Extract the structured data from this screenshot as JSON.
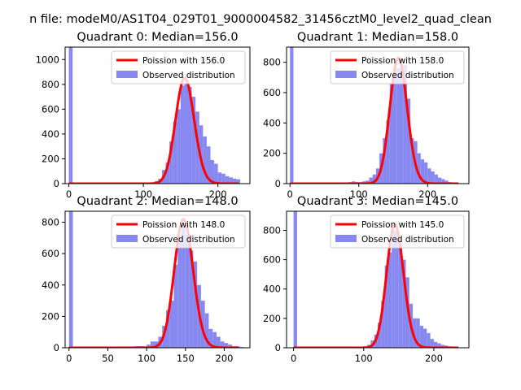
{
  "figure": {
    "suptitle": "n file: modeM0/AS1T04_029T01_9000004582_31456cztM0_level2_quad_clean"
  },
  "colors": {
    "hist": "#7b7bf0",
    "fit": "#ff0000",
    "axis": "#000000"
  },
  "chart_data": [
    {
      "type": "bar",
      "title": "Quadrant 0: Median=156.0",
      "median": 156.0,
      "xlim": [
        -5,
        243
      ],
      "ylim": [
        0,
        1100
      ],
      "xticks": [
        0,
        100,
        200
      ],
      "yticks": [
        0,
        200,
        400,
        600,
        800,
        1000
      ],
      "bin_width": 5,
      "zero_bar": 1100,
      "bins_x": [
        105,
        110,
        115,
        120,
        125,
        130,
        135,
        140,
        145,
        150,
        155,
        160,
        165,
        170,
        175,
        180,
        185,
        190,
        195,
        200,
        205,
        210,
        215,
        220,
        225
      ],
      "bins_y": [
        5,
        10,
        20,
        40,
        110,
        170,
        340,
        500,
        600,
        790,
        810,
        780,
        700,
        580,
        470,
        380,
        300,
        190,
        160,
        90,
        80,
        60,
        50,
        40,
        35
      ],
      "legend": [
        "Poission with 156.0",
        "Observed distribution"
      ],
      "fit_label": "Poission with 156.0",
      "hist_label": "Observed distribution"
    },
    {
      "type": "bar",
      "title": "Quadrant 1: Median=158.0",
      "median": 158.0,
      "xlim": [
        -5,
        260
      ],
      "ylim": [
        0,
        900
      ],
      "xticks": [
        0,
        100,
        200
      ],
      "yticks": [
        0,
        200,
        400,
        600,
        800
      ],
      "bin_width": 5,
      "zero_bar": 900,
      "bins_x": [
        85,
        90,
        95,
        100,
        105,
        110,
        115,
        120,
        125,
        130,
        135,
        140,
        145,
        150,
        155,
        160,
        165,
        170,
        175,
        180,
        185,
        190,
        195,
        200,
        205,
        210,
        215,
        220,
        225,
        230,
        235
      ],
      "bins_y": [
        10,
        15,
        10,
        10,
        15,
        20,
        40,
        60,
        100,
        200,
        300,
        420,
        660,
        760,
        760,
        790,
        780,
        560,
        300,
        280,
        200,
        160,
        140,
        100,
        80,
        60,
        40,
        30,
        20,
        10,
        5
      ],
      "legend": [
        "Poission with 158.0",
        "Observed distribution"
      ],
      "fit_label": "Poission with 158.0",
      "hist_label": "Observed distribution"
    },
    {
      "type": "bar",
      "title": "Quadrant 2: Median=148.0",
      "median": 148.0,
      "xlim": [
        -5,
        233
      ],
      "ylim": [
        0,
        870
      ],
      "xticks": [
        0,
        50,
        100,
        150,
        200
      ],
      "yticks": [
        0,
        200,
        400,
        600,
        800
      ],
      "bin_width": 5,
      "zero_bar": 870,
      "bins_x": [
        75,
        80,
        85,
        90,
        95,
        100,
        105,
        110,
        115,
        120,
        125,
        130,
        135,
        140,
        145,
        150,
        155,
        160,
        165,
        170,
        175,
        180,
        185,
        190,
        195,
        200,
        205,
        210,
        215,
        220
      ],
      "bins_y": [
        5,
        5,
        10,
        10,
        10,
        20,
        40,
        40,
        70,
        140,
        240,
        300,
        530,
        700,
        780,
        720,
        620,
        550,
        400,
        300,
        220,
        120,
        100,
        70,
        40,
        30,
        20,
        10,
        10,
        5
      ],
      "legend": [
        "Poission with 148.0",
        "Observed distribution"
      ],
      "fit_label": "Poission with 148.0",
      "hist_label": "Observed distribution"
    },
    {
      "type": "bar",
      "title": "Quadrant 3: Median=145.0",
      "median": 145.0,
      "xlim": [
        -10,
        250
      ],
      "ylim": [
        0,
        930
      ],
      "xticks": [
        0,
        100,
        200
      ],
      "yticks": [
        0,
        200,
        400,
        600,
        800
      ],
      "bin_width": 5,
      "zero_bar": 930,
      "bins_x": [
        100,
        105,
        110,
        115,
        120,
        125,
        130,
        135,
        140,
        145,
        150,
        155,
        160,
        165,
        170,
        175,
        180,
        185,
        190,
        195,
        200,
        205,
        210,
        215,
        220,
        225
      ],
      "bins_y": [
        10,
        20,
        50,
        90,
        170,
        320,
        560,
        650,
        800,
        800,
        700,
        600,
        480,
        300,
        200,
        200,
        150,
        130,
        100,
        60,
        40,
        30,
        20,
        15,
        10,
        5
      ],
      "legend": [
        "Poission with 145.0",
        "Observed distribution"
      ],
      "fit_label": "Poission with 145.0",
      "hist_label": "Observed distribution"
    }
  ]
}
